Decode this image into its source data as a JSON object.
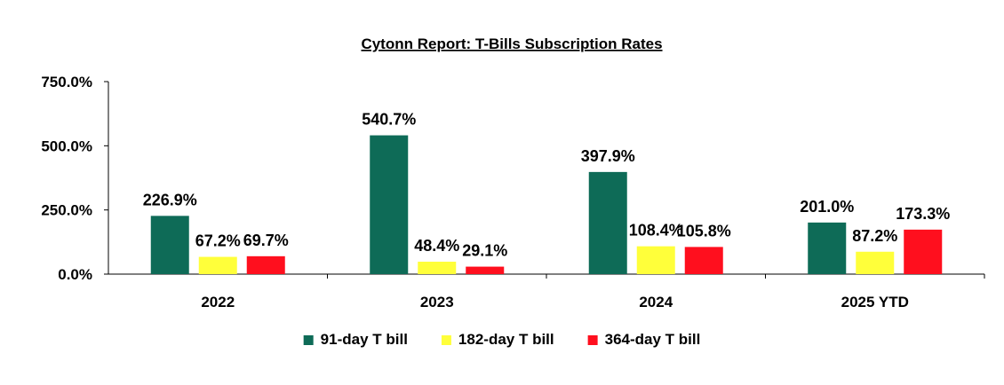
{
  "chart_data": {
    "type": "bar",
    "title": "Cytonn Report: T-Bills Subscription Rates",
    "categories": [
      "2022",
      "2023",
      "2024",
      "2025 YTD"
    ],
    "series": [
      {
        "name": "91-day T bill",
        "color": "#0e6b57",
        "values": [
          226.9,
          540.7,
          397.9,
          201.0
        ],
        "labels": [
          "226.9%",
          "540.7%",
          "397.9%",
          "201.0%"
        ]
      },
      {
        "name": "182-day T bill",
        "color": "#ffff3a",
        "values": [
          67.2,
          48.4,
          108.4,
          87.2
        ],
        "labels": [
          "67.2%",
          "48.4%",
          "108.4%",
          "87.2%"
        ]
      },
      {
        "name": "364-day T bill",
        "color": "#ff0f1e",
        "values": [
          69.7,
          29.1,
          105.8,
          173.3
        ],
        "labels": [
          "69.7%",
          "29.1%",
          "105.8%",
          "173.3%"
        ]
      }
    ],
    "ylim": [
      0,
      750
    ],
    "yticks": [
      0,
      250,
      500,
      750
    ],
    "ytick_labels": [
      "0.0%",
      "250.0%",
      "500.0%",
      "750.0%"
    ],
    "grid": false,
    "legend_position": "bottom"
  }
}
